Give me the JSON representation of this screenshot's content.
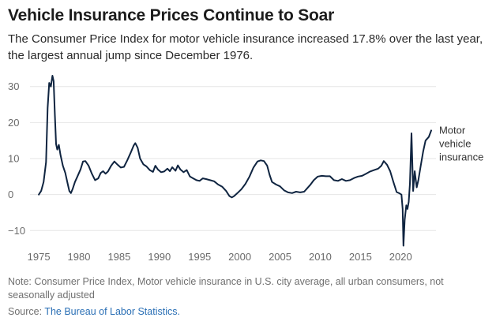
{
  "chart_data": {
    "type": "line",
    "title": "Vehicle Insurance Prices Continue to Soar",
    "subtitle": "The Consumer Price Index for motor vehicle insurance increased 17.8% over the last year, the largest annual jump since December 1976.",
    "xlabel": "",
    "ylabel": "",
    "xlim": [
      1974.5,
      2024
    ],
    "ylim": [
      -13,
      33
    ],
    "xticks": [
      1975,
      1980,
      1985,
      1990,
      1995,
      2000,
      2005,
      2010,
      2015,
      2020
    ],
    "xtick_labels": [
      "1975",
      "1980",
      "1985",
      "1990",
      "1995",
      "2000",
      "2005",
      "2010",
      "2015",
      "2020"
    ],
    "yticks": [
      -10,
      0,
      10,
      20,
      30
    ],
    "ytick_labels": [
      "−10",
      "0",
      "10",
      "20",
      "30"
    ],
    "grid": "horizontal",
    "series": [
      {
        "name": "Motor vehicle insurance",
        "label_lines": [
          "Motor",
          "vehicle",
          "insurance"
        ],
        "color": "#0f2440",
        "points": [
          [
            1975.0,
            0.0
          ],
          [
            1975.3,
            1.0
          ],
          [
            1975.6,
            3.5
          ],
          [
            1975.9,
            9.0
          ],
          [
            1976.1,
            24.0
          ],
          [
            1976.3,
            31.0
          ],
          [
            1976.5,
            30.0
          ],
          [
            1976.7,
            33.0
          ],
          [
            1976.85,
            31.5
          ],
          [
            1977.0,
            22.0
          ],
          [
            1977.15,
            14.0
          ],
          [
            1977.3,
            12.5
          ],
          [
            1977.5,
            13.8
          ],
          [
            1977.7,
            11.0
          ],
          [
            1978.0,
            8.0
          ],
          [
            1978.3,
            6.0
          ],
          [
            1978.6,
            3.0
          ],
          [
            1978.8,
            1.0
          ],
          [
            1979.0,
            0.4
          ],
          [
            1979.2,
            1.5
          ],
          [
            1979.5,
            3.5
          ],
          [
            1979.8,
            5.0
          ],
          [
            1980.2,
            7.0
          ],
          [
            1980.5,
            9.2
          ],
          [
            1980.8,
            9.3
          ],
          [
            1981.2,
            8.0
          ],
          [
            1981.6,
            5.8
          ],
          [
            1982.0,
            4.0
          ],
          [
            1982.4,
            4.5
          ],
          [
            1982.7,
            6.0
          ],
          [
            1983.0,
            6.5
          ],
          [
            1983.3,
            5.8
          ],
          [
            1983.6,
            6.4
          ],
          [
            1984.0,
            8.0
          ],
          [
            1984.4,
            9.2
          ],
          [
            1984.8,
            8.3
          ],
          [
            1985.2,
            7.5
          ],
          [
            1985.6,
            7.7
          ],
          [
            1986.0,
            9.5
          ],
          [
            1986.4,
            11.5
          ],
          [
            1986.8,
            13.6
          ],
          [
            1987.0,
            14.3
          ],
          [
            1987.3,
            13.0
          ],
          [
            1987.6,
            10.0
          ],
          [
            1988.0,
            8.4
          ],
          [
            1988.4,
            7.8
          ],
          [
            1988.8,
            6.8
          ],
          [
            1989.2,
            6.3
          ],
          [
            1989.5,
            8.0
          ],
          [
            1989.8,
            7.0
          ],
          [
            1990.2,
            6.2
          ],
          [
            1990.6,
            6.4
          ],
          [
            1991.0,
            7.2
          ],
          [
            1991.3,
            6.5
          ],
          [
            1991.6,
            7.6
          ],
          [
            1992.0,
            6.6
          ],
          [
            1992.3,
            8.1
          ],
          [
            1992.6,
            7.0
          ],
          [
            1993.0,
            6.2
          ],
          [
            1993.4,
            6.8
          ],
          [
            1993.8,
            5.0
          ],
          [
            1994.2,
            4.5
          ],
          [
            1994.6,
            4.0
          ],
          [
            1995.0,
            3.8
          ],
          [
            1995.4,
            4.5
          ],
          [
            1995.8,
            4.3
          ],
          [
            1996.3,
            4.0
          ],
          [
            1996.8,
            3.7
          ],
          [
            1997.3,
            2.8
          ],
          [
            1997.8,
            2.2
          ],
          [
            1998.3,
            1.0
          ],
          [
            1998.7,
            -0.4
          ],
          [
            1999.0,
            -0.8
          ],
          [
            1999.3,
            -0.4
          ],
          [
            1999.7,
            0.4
          ],
          [
            2000.2,
            1.5
          ],
          [
            2000.7,
            3.0
          ],
          [
            2001.2,
            5.0
          ],
          [
            2001.7,
            7.5
          ],
          [
            2002.2,
            9.2
          ],
          [
            2002.6,
            9.5
          ],
          [
            2003.0,
            9.3
          ],
          [
            2003.4,
            8.0
          ],
          [
            2003.7,
            5.5
          ],
          [
            2004.0,
            3.5
          ],
          [
            2004.5,
            2.8
          ],
          [
            2005.0,
            2.3
          ],
          [
            2005.5,
            1.2
          ],
          [
            2006.0,
            0.6
          ],
          [
            2006.5,
            0.4
          ],
          [
            2007.0,
            0.8
          ],
          [
            2007.5,
            0.6
          ],
          [
            2008.0,
            0.8
          ],
          [
            2008.4,
            1.8
          ],
          [
            2008.8,
            2.8
          ],
          [
            2009.2,
            4.0
          ],
          [
            2009.7,
            5.0
          ],
          [
            2010.2,
            5.2
          ],
          [
            2010.7,
            5.1
          ],
          [
            2011.2,
            5.1
          ],
          [
            2011.7,
            4.0
          ],
          [
            2012.2,
            3.8
          ],
          [
            2012.7,
            4.3
          ],
          [
            2013.2,
            3.8
          ],
          [
            2013.7,
            4.0
          ],
          [
            2014.2,
            4.6
          ],
          [
            2014.7,
            5.0
          ],
          [
            2015.2,
            5.2
          ],
          [
            2015.7,
            5.8
          ],
          [
            2016.2,
            6.4
          ],
          [
            2016.7,
            6.8
          ],
          [
            2017.2,
            7.2
          ],
          [
            2017.6,
            8.0
          ],
          [
            2017.9,
            9.3
          ],
          [
            2018.3,
            8.3
          ],
          [
            2018.7,
            6.5
          ],
          [
            2019.1,
            3.5
          ],
          [
            2019.5,
            0.7
          ],
          [
            2019.8,
            0.4
          ],
          [
            2020.1,
            0.0
          ],
          [
            2020.25,
            -4.0
          ],
          [
            2020.35,
            -14.2
          ],
          [
            2020.5,
            -7.0
          ],
          [
            2020.7,
            -3.0
          ],
          [
            2020.85,
            -4.0
          ],
          [
            2021.0,
            -2.0
          ],
          [
            2021.15,
            3.0
          ],
          [
            2021.35,
            17.0
          ],
          [
            2021.55,
            1.0
          ],
          [
            2021.75,
            6.5
          ],
          [
            2022.0,
            2.0
          ],
          [
            2022.2,
            4.0
          ],
          [
            2022.5,
            8.0
          ],
          [
            2022.8,
            12.0
          ],
          [
            2023.1,
            15.0
          ],
          [
            2023.5,
            16.0
          ],
          [
            2023.8,
            17.8
          ]
        ]
      }
    ]
  },
  "note": "Note: Consumer Price Index, Motor vehicle insurance in U.S. city average, all urban consumers, not seasonally adjusted",
  "source_prefix": "Source: ",
  "source_link": "The Bureau of Labor Statistics."
}
